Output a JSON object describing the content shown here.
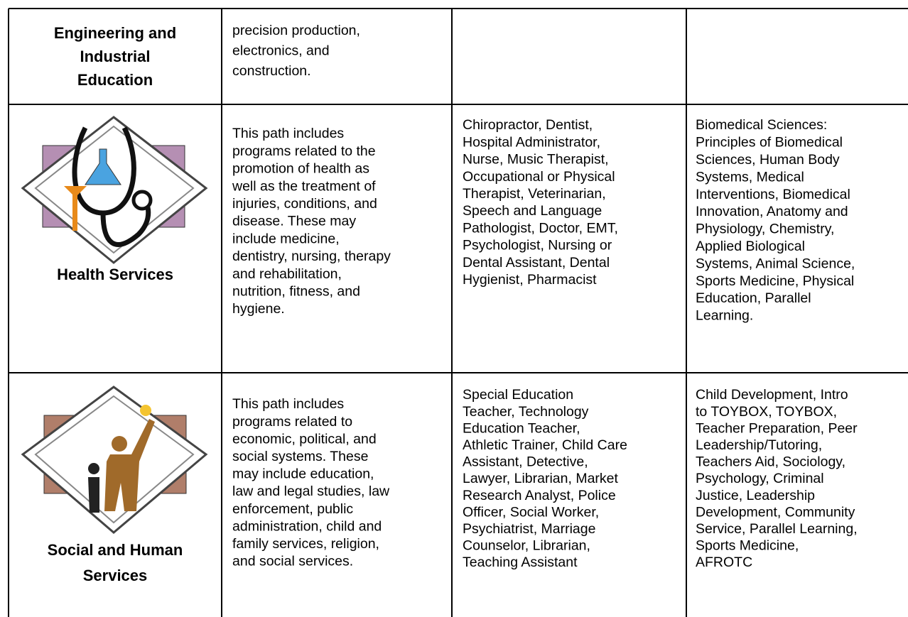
{
  "table": {
    "rows": [
      [
        {
          "lines": [
            "Engineering and",
            "Industrial",
            "Education"
          ]
        },
        {
          "lines": [
            "precision production,",
            "electronics, and",
            "construction."
          ]
        },
        {
          "lines": []
        },
        {
          "lines": []
        }
      ],
      [
        {
          "lines": [
            "Health Services"
          ]
        },
        {
          "lines": [
            "This path includes",
            "programs related to the",
            "promotion of health as",
            "well as the treatment of",
            "injuries, conditions, and",
            "disease. These may",
            "include medicine,",
            "dentistry, nursing, therapy",
            "and rehabilitation,",
            "nutrition, fitness, and",
            "hygiene."
          ]
        },
        {
          "lines": [
            "Chiropractor, Dentist,",
            "Hospital Administrator,",
            "Nurse, Music Therapist,",
            "Occupational or  Physical",
            "Therapist, Veterinarian,",
            "Speech and Language",
            "Pathologist, Doctor, EMT,",
            "Psychologist, Nursing or",
            "Dental Assistant, Dental",
            "Hygienist, Pharmacist"
          ]
        },
        {
          "lines": [
            "Biomedical Sciences:",
            "Principles of Biomedical",
            "Sciences, Human Body",
            "Systems, Medical",
            "Interventions, Biomedical",
            "Innovation, Anatomy and",
            "Physiology, Chemistry,",
            "Applied Biological",
            "Systems, Animal Science,",
            "Sports Medicine, Physical",
            "Education, Parallel",
            "Learning."
          ]
        }
      ],
      [
        {
          "lines": [
            "Social and Human",
            "Services"
          ]
        },
        {
          "lines": [
            "This path includes",
            "programs related to",
            "economic, political, and",
            "social systems. These",
            "may include education,",
            "law and legal studies, law",
            "enforcement, public",
            "administration, child and",
            "family services, religion,",
            "and social services."
          ]
        },
        {
          "lines": [
            "Special Education",
            "Teacher, Technology",
            "Education Teacher,",
            "Athletic Trainer, Child Care",
            "Assistant, Detective,",
            "Lawyer, Librarian, Market",
            "Research Analyst, Police",
            "Officer, Social Worker,",
            "Psychiatrist, Marriage",
            "Counselor, Librarian,",
            "Teaching Assistant"
          ]
        },
        {
          "lines": [
            "Child Development, Intro",
            "to TOYBOX, TOYBOX,",
            "Teacher Preparation, Peer",
            "Leadership/Tutoring,",
            "Teachers Aid, Sociology,",
            "Psychology, Criminal",
            "Justice, Leadership",
            "Development, Community",
            "Service, Parallel Learning,",
            "Sports Medicine,",
            "AFROTC"
          ]
        }
      ]
    ]
  }
}
